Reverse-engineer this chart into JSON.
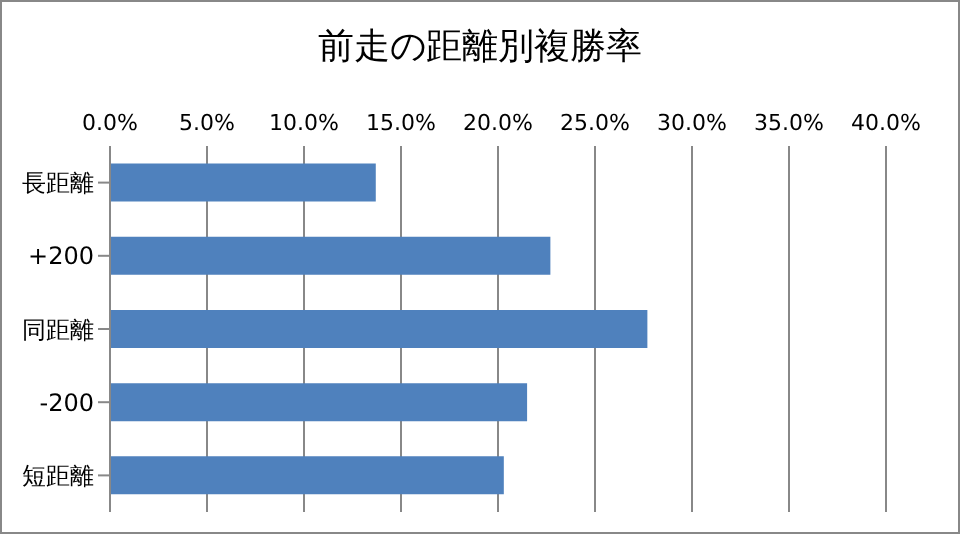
{
  "chart_data": {
    "type": "bar",
    "orientation": "horizontal",
    "title": "前走の距離別複勝率",
    "categories": [
      "長距離",
      "+200",
      "同距離",
      "-200",
      "短距離"
    ],
    "values": [
      13.7,
      22.7,
      27.7,
      21.5,
      20.3
    ],
    "color": "#4f81bd",
    "xlim": [
      0,
      40
    ],
    "xticks": [
      {
        "value": 0,
        "label": "0.0%"
      },
      {
        "value": 5,
        "label": "5.0%"
      },
      {
        "value": 10,
        "label": "10.0%"
      },
      {
        "value": 15,
        "label": "15.0%"
      },
      {
        "value": 20,
        "label": "20.0%"
      },
      {
        "value": 25,
        "label": "25.0%"
      },
      {
        "value": 30,
        "label": "30.0%"
      },
      {
        "value": 35,
        "label": "35.0%"
      },
      {
        "value": 40,
        "label": "40.0%"
      }
    ],
    "grid": "x"
  }
}
